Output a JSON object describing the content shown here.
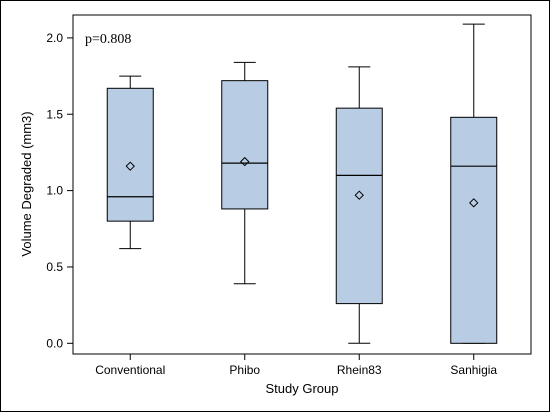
{
  "chart_data": {
    "type": "box",
    "title": "",
    "xlabel": "Study Group",
    "ylabel": "Volume Degraded (mm3)",
    "annotation": "p=0.808",
    "ylim": [
      -0.07,
      2.15
    ],
    "yticks": [
      "0.0",
      "0.5",
      "1.0",
      "1.5",
      "2.0"
    ],
    "grid": false,
    "box_color": "#b8cce4",
    "categories": [
      "Conventional",
      "Phibo",
      "Rhein83",
      "Sanhigia"
    ],
    "boxes": [
      {
        "whisker_low": 0.62,
        "q1": 0.8,
        "median": 0.96,
        "q3": 1.67,
        "whisker_high": 1.75,
        "mean": 1.16
      },
      {
        "whisker_low": 0.39,
        "q1": 0.88,
        "median": 1.18,
        "q3": 1.72,
        "whisker_high": 1.84,
        "mean": 1.19
      },
      {
        "whisker_low": 0.0,
        "q1": 0.26,
        "median": 1.1,
        "q3": 1.54,
        "whisker_high": 1.81,
        "mean": 0.97
      },
      {
        "whisker_low": 0.0,
        "q1": 0.0,
        "median": 1.16,
        "q3": 1.48,
        "whisker_high": 2.09,
        "mean": 0.92
      }
    ]
  }
}
